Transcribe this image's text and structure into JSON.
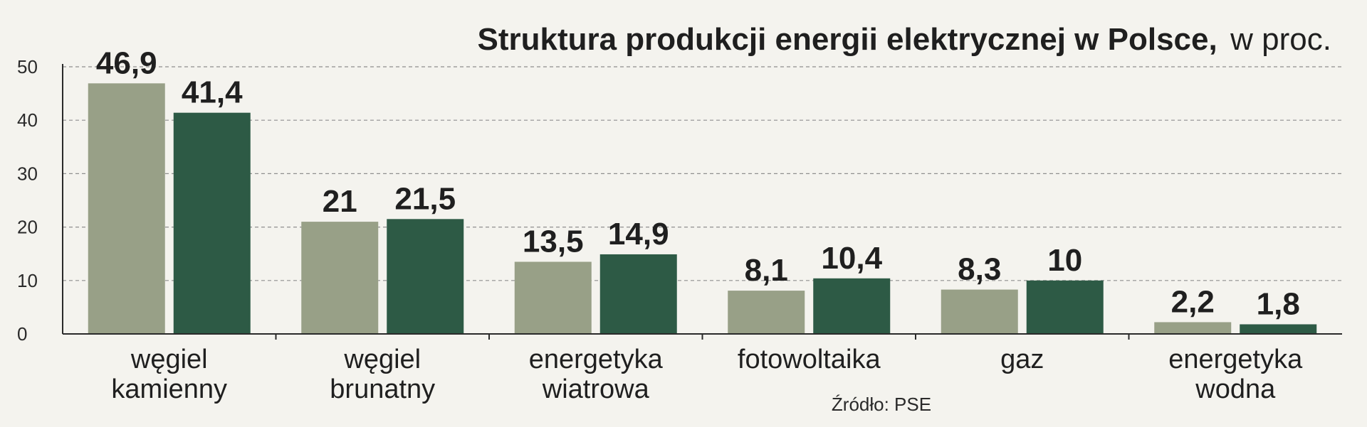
{
  "chart_data": {
    "type": "bar",
    "title": "Struktura produkcji energii elektrycznej w Polsce,",
    "subtitle": "w proc.",
    "categories": [
      [
        "węgiel",
        "kamienny"
      ],
      [
        "węgiel",
        "brunatny"
      ],
      [
        "energetyka",
        "wiatrowa"
      ],
      [
        "fotowoltaika"
      ],
      [
        "gaz"
      ],
      [
        "energetyka",
        "wodna"
      ]
    ],
    "series": [
      {
        "color": "#98a087",
        "values": [
          46.9,
          21,
          13.5,
          8.1,
          8.3,
          2.2
        ],
        "labels": [
          "46,9",
          "21",
          "13,5",
          "8,1",
          "8,3",
          "2,2"
        ]
      },
      {
        "color": "#2d5a45",
        "values": [
          41.4,
          21.5,
          14.9,
          10.4,
          10,
          1.8
        ],
        "labels": [
          "41,4",
          "21,5",
          "14,9",
          "10,4",
          "10",
          "1,8"
        ]
      }
    ],
    "ylim": [
      0,
      50
    ],
    "yticks": [
      0,
      10,
      20,
      30,
      40,
      50
    ],
    "grid": true,
    "source": "Źródło: PSE"
  }
}
